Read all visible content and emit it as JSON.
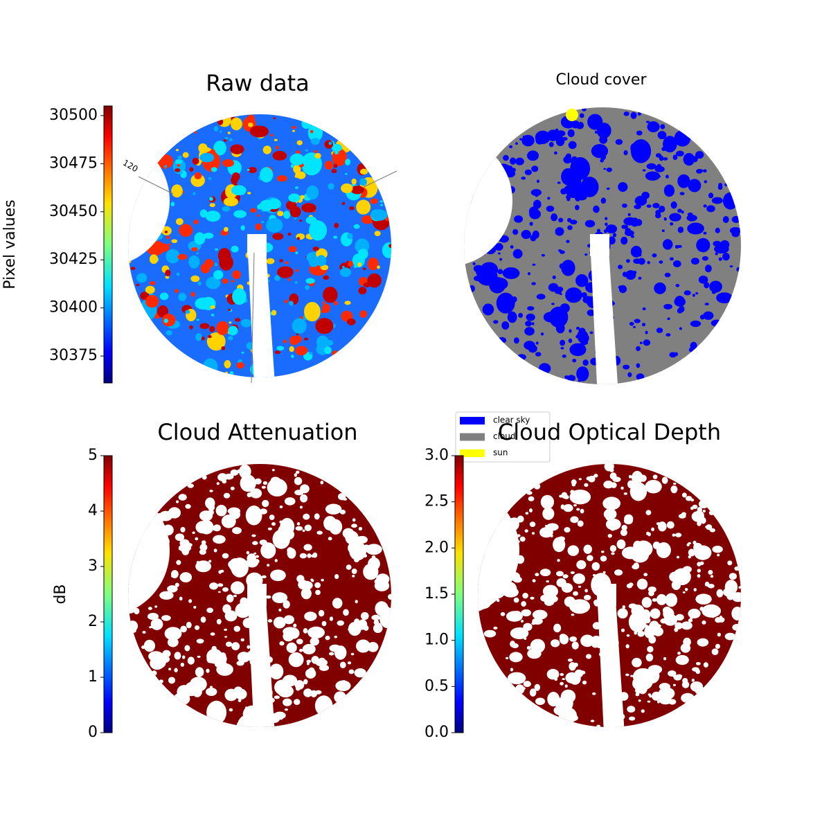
{
  "chart_data": [
    {
      "type": "image",
      "title": "Raw data",
      "annotation": "120",
      "colorbar": {
        "label": "Pixel values",
        "colormap": "jet",
        "lim": [
          30361,
          30505
        ],
        "ticks": [
          30375,
          30400,
          30425,
          30450,
          30475,
          30500
        ]
      }
    },
    {
      "type": "image",
      "title": "Cloud cover",
      "legend": [
        {
          "name": "clear sky",
          "color": "#0000ff"
        },
        {
          "name": "cloud",
          "color": "#808080"
        },
        {
          "name": "sun",
          "color": "#ffff00"
        }
      ]
    },
    {
      "type": "image",
      "title": "Cloud Attenuation",
      "colorbar": {
        "label": "dB",
        "colormap": "jet",
        "lim": [
          0,
          5
        ],
        "ticks": [
          0,
          1,
          2,
          3,
          4,
          5
        ]
      }
    },
    {
      "type": "image",
      "title": "Cloud Optical Depth",
      "colorbar": {
        "colormap": "jet",
        "lim": [
          0,
          3
        ],
        "ticks": [
          {
            "value": 0,
            "label": "0.0"
          },
          {
            "value": 0.5,
            "label": "0.5"
          },
          {
            "value": 1,
            "label": "1.0"
          },
          {
            "value": 1.5,
            "label": "1.5"
          },
          {
            "value": 2,
            "label": "2.0"
          },
          {
            "value": 2.5,
            "label": "2.5"
          },
          {
            "value": 3,
            "label": "3.0"
          }
        ]
      }
    }
  ]
}
